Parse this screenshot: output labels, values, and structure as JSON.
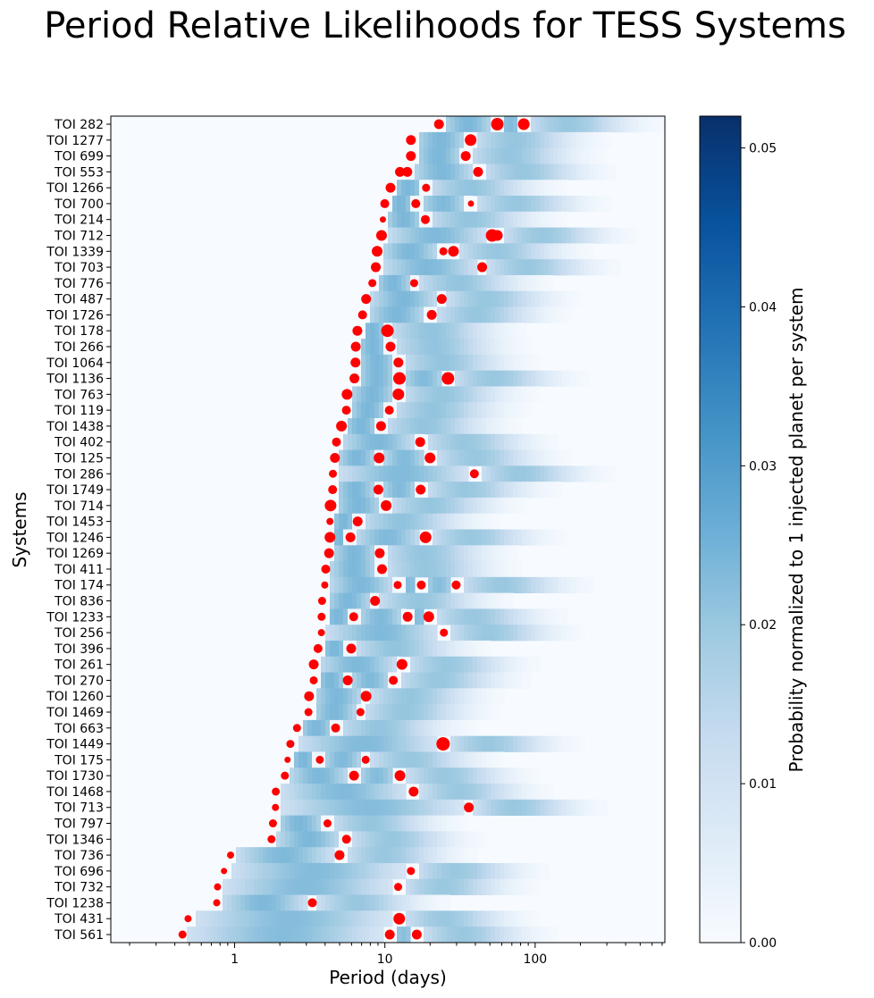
{
  "chart_data": {
    "type": "heatmap",
    "title": "Period Relative Likelihoods for TESS Systems",
    "xlabel": "Period (days)",
    "ylabel": "Systems",
    "xscale": "log",
    "xlim": [
      0.15,
      730
    ],
    "x_ticks": [
      1,
      10,
      100
    ],
    "x_tick_labels": [
      "1",
      "10",
      "100"
    ],
    "colorbar": {
      "label": "Probability normalized to 1 injected planet per system",
      "range": [
        0,
        0.052
      ],
      "ticks": [
        0.0,
        0.01,
        0.02,
        0.03,
        0.04,
        0.05
      ],
      "tick_labels": [
        "0.00",
        "0.01",
        "0.02",
        "0.03",
        "0.04",
        "0.05"
      ],
      "colormap": "Blues",
      "colors": [
        "#f7fbff",
        "#deebf7",
        "#c6dbef",
        "#9ecae1",
        "#6baed6",
        "#4292c6",
        "#2171b5",
        "#08519c",
        "#08306b"
      ]
    },
    "marker_color": "#ff0000",
    "systems": [
      {
        "name": "TOI 282",
        "planets": [
          {
            "period": 22.9,
            "size": 5.5
          },
          {
            "period": 56,
            "size": 7
          },
          {
            "period": 84,
            "size": 6.5
          }
        ]
      },
      {
        "name": "TOI 1277",
        "planets": [
          {
            "period": 14.9,
            "size": 5.5
          },
          {
            "period": 37.2,
            "size": 6.5
          }
        ]
      },
      {
        "name": "TOI 699",
        "planets": [
          {
            "period": 14.9,
            "size": 5.5
          },
          {
            "period": 34.5,
            "size": 5.5
          }
        ]
      },
      {
        "name": "TOI 553",
        "planets": [
          {
            "period": 12.6,
            "size": 5.5
          },
          {
            "period": 14.1,
            "size": 5.5
          },
          {
            "period": 41.7,
            "size": 5.5
          }
        ]
      },
      {
        "name": "TOI 1266",
        "planets": [
          {
            "period": 10.9,
            "size": 5.5
          },
          {
            "period": 18.8,
            "size": 4.5
          }
        ]
      },
      {
        "name": "TOI 700",
        "planets": [
          {
            "period": 9.98,
            "size": 5
          },
          {
            "period": 16.05,
            "size": 5
          },
          {
            "period": 37.4,
            "size": 3.5
          }
        ]
      },
      {
        "name": "TOI 214",
        "planets": [
          {
            "period": 9.7,
            "size": 3.5
          },
          {
            "period": 18.6,
            "size": 5
          }
        ]
      },
      {
        "name": "TOI 712",
        "planets": [
          {
            "period": 9.5,
            "size": 6
          },
          {
            "period": 51.7,
            "size": 7
          },
          {
            "period": 56,
            "size": 6
          }
        ]
      },
      {
        "name": "TOI 1339",
        "planets": [
          {
            "period": 8.88,
            "size": 6
          },
          {
            "period": 24.5,
            "size": 4.5
          },
          {
            "period": 28.6,
            "size": 6
          }
        ]
      },
      {
        "name": "TOI 703",
        "planets": [
          {
            "period": 8.7,
            "size": 5.5
          },
          {
            "period": 44.4,
            "size": 5.5
          }
        ]
      },
      {
        "name": "TOI 776",
        "planets": [
          {
            "period": 8.25,
            "size": 4.5
          },
          {
            "period": 15.66,
            "size": 4.5
          }
        ]
      },
      {
        "name": "TOI 487",
        "planets": [
          {
            "period": 7.5,
            "size": 5.5
          },
          {
            "period": 23.9,
            "size": 5.5
          }
        ]
      },
      {
        "name": "TOI 1726",
        "planets": [
          {
            "period": 7.1,
            "size": 5
          },
          {
            "period": 20.5,
            "size": 5.5
          }
        ]
      },
      {
        "name": "TOI 178",
        "planets": [
          {
            "period": 6.56,
            "size": 5.5
          },
          {
            "period": 10.4,
            "size": 7
          }
        ]
      },
      {
        "name": "TOI 266",
        "planets": [
          {
            "period": 6.4,
            "size": 5.5
          },
          {
            "period": 10.9,
            "size": 5.5
          }
        ]
      },
      {
        "name": "TOI 1064",
        "planets": [
          {
            "period": 6.37,
            "size": 5.5
          },
          {
            "period": 12.3,
            "size": 5.5
          }
        ]
      },
      {
        "name": "TOI 1136",
        "planets": [
          {
            "period": 6.27,
            "size": 5.5
          },
          {
            "period": 12.5,
            "size": 7
          },
          {
            "period": 26.3,
            "size": 7
          }
        ]
      },
      {
        "name": "TOI 763",
        "planets": [
          {
            "period": 5.6,
            "size": 6
          },
          {
            "period": 12.3,
            "size": 6.5
          }
        ]
      },
      {
        "name": "TOI 119",
        "planets": [
          {
            "period": 5.54,
            "size": 5
          },
          {
            "period": 10.7,
            "size": 5
          }
        ]
      },
      {
        "name": "TOI 1438",
        "planets": [
          {
            "period": 5.14,
            "size": 6
          },
          {
            "period": 9.43,
            "size": 5.5
          }
        ]
      },
      {
        "name": "TOI 402",
        "planets": [
          {
            "period": 4.76,
            "size": 5
          },
          {
            "period": 17.18,
            "size": 5.5
          }
        ]
      },
      {
        "name": "TOI 125",
        "planets": [
          {
            "period": 4.65,
            "size": 5.5
          },
          {
            "period": 9.15,
            "size": 6
          },
          {
            "period": 19.98,
            "size": 6
          }
        ]
      },
      {
        "name": "TOI 286",
        "planets": [
          {
            "period": 4.51,
            "size": 4.5
          },
          {
            "period": 39.4,
            "size": 5
          }
        ]
      },
      {
        "name": "TOI 1749",
        "planets": [
          {
            "period": 4.49,
            "size": 5
          },
          {
            "period": 9.05,
            "size": 5.5
          },
          {
            "period": 17.3,
            "size": 5.5
          }
        ]
      },
      {
        "name": "TOI 714",
        "planets": [
          {
            "period": 4.35,
            "size": 6.5
          },
          {
            "period": 10.2,
            "size": 6
          }
        ]
      },
      {
        "name": "TOI 1453",
        "planets": [
          {
            "period": 4.31,
            "size": 4
          },
          {
            "period": 6.59,
            "size": 5.5
          }
        ]
      },
      {
        "name": "TOI 1246",
        "planets": [
          {
            "period": 4.31,
            "size": 6
          },
          {
            "period": 5.9,
            "size": 5.5
          },
          {
            "period": 18.66,
            "size": 6.5
          }
        ]
      },
      {
        "name": "TOI 1269",
        "planets": [
          {
            "period": 4.25,
            "size": 5.5
          },
          {
            "period": 9.24,
            "size": 5.5
          }
        ]
      },
      {
        "name": "TOI 411",
        "planets": [
          {
            "period": 4.04,
            "size": 5
          },
          {
            "period": 9.57,
            "size": 5.5
          }
        ]
      },
      {
        "name": "TOI 174",
        "planets": [
          {
            "period": 3.98,
            "size": 4
          },
          {
            "period": 12.16,
            "size": 4.5
          },
          {
            "period": 17.47,
            "size": 5
          },
          {
            "period": 29.8,
            "size": 5
          }
        ]
      },
      {
        "name": "TOI 836",
        "planets": [
          {
            "period": 3.82,
            "size": 4.5
          },
          {
            "period": 8.6,
            "size": 5.5
          }
        ]
      },
      {
        "name": "TOI 1233",
        "planets": [
          {
            "period": 3.79,
            "size": 4.5
          },
          {
            "period": 6.2,
            "size": 5
          },
          {
            "period": 14.17,
            "size": 5.5
          },
          {
            "period": 19.59,
            "size": 6
          }
        ]
      },
      {
        "name": "TOI 256",
        "planets": [
          {
            "period": 3.78,
            "size": 4
          },
          {
            "period": 24.7,
            "size": 4.5
          }
        ]
      },
      {
        "name": "TOI 396",
        "planets": [
          {
            "period": 3.59,
            "size": 5
          },
          {
            "period": 5.97,
            "size": 5.5
          }
        ]
      },
      {
        "name": "TOI 261",
        "planets": [
          {
            "period": 3.36,
            "size": 5.5
          },
          {
            "period": 13.0,
            "size": 6
          }
        ]
      },
      {
        "name": "TOI 270",
        "planets": [
          {
            "period": 3.36,
            "size": 4.5
          },
          {
            "period": 5.66,
            "size": 5.5
          },
          {
            "period": 11.38,
            "size": 5
          }
        ]
      },
      {
        "name": "TOI 1260",
        "planets": [
          {
            "period": 3.13,
            "size": 5.5
          },
          {
            "period": 7.49,
            "size": 6
          }
        ]
      },
      {
        "name": "TOI 1469",
        "planets": [
          {
            "period": 3.1,
            "size": 4.5
          },
          {
            "period": 6.88,
            "size": 4.5
          }
        ]
      },
      {
        "name": "TOI 663",
        "planets": [
          {
            "period": 2.6,
            "size": 4.5
          },
          {
            "period": 4.7,
            "size": 5
          }
        ]
      },
      {
        "name": "TOI 1449",
        "planets": [
          {
            "period": 2.35,
            "size": 4.5
          },
          {
            "period": 24.4,
            "size": 7.5
          }
        ]
      },
      {
        "name": "TOI 175",
        "planets": [
          {
            "period": 2.25,
            "size": 3.5
          },
          {
            "period": 3.69,
            "size": 4.5
          },
          {
            "period": 7.45,
            "size": 4.5
          }
        ]
      },
      {
        "name": "TOI 1730",
        "planets": [
          {
            "period": 2.16,
            "size": 4.5
          },
          {
            "period": 6.23,
            "size": 5.5
          },
          {
            "period": 12.6,
            "size": 6
          }
        ]
      },
      {
        "name": "TOI 1468",
        "planets": [
          {
            "period": 1.88,
            "size": 4.5
          },
          {
            "period": 15.53,
            "size": 5.5
          }
        ]
      },
      {
        "name": "TOI 713",
        "planets": [
          {
            "period": 1.87,
            "size": 4
          },
          {
            "period": 36.2,
            "size": 5.5
          }
        ]
      },
      {
        "name": "TOI 797",
        "planets": [
          {
            "period": 1.8,
            "size": 4.5
          },
          {
            "period": 4.15,
            "size": 4.5
          }
        ]
      },
      {
        "name": "TOI 1346",
        "planets": [
          {
            "period": 1.76,
            "size": 4.5
          },
          {
            "period": 5.55,
            "size": 5
          }
        ]
      },
      {
        "name": "TOI 736",
        "planets": [
          {
            "period": 0.94,
            "size": 4
          },
          {
            "period": 4.99,
            "size": 5.5
          }
        ]
      },
      {
        "name": "TOI 696",
        "planets": [
          {
            "period": 0.85,
            "size": 3.5
          },
          {
            "period": 14.9,
            "size": 4.5
          }
        ]
      },
      {
        "name": "TOI 732",
        "planets": [
          {
            "period": 0.77,
            "size": 4
          },
          {
            "period": 12.25,
            "size": 4.5
          }
        ]
      },
      {
        "name": "TOI 1238",
        "planets": [
          {
            "period": 0.76,
            "size": 4
          },
          {
            "period": 3.29,
            "size": 5
          }
        ]
      },
      {
        "name": "TOI 431",
        "planets": [
          {
            "period": 0.49,
            "size": 4
          },
          {
            "period": 12.46,
            "size": 6.5
          }
        ]
      },
      {
        "name": "TOI 561",
        "planets": [
          {
            "period": 0.45,
            "size": 4.5
          },
          {
            "period": 10.78,
            "size": 5.5
          },
          {
            "period": 16.3,
            "size": 5.5
          }
        ]
      }
    ]
  }
}
